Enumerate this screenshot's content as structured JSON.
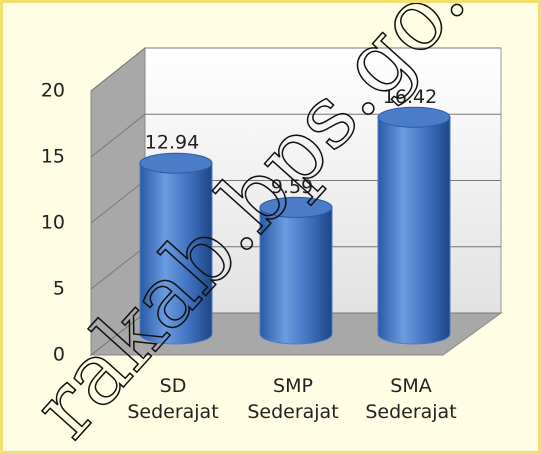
{
  "chart_data": {
    "type": "bar3d",
    "categories": [
      "SD Sederajat",
      "SMP Sederajat",
      "SMA Sederajat"
    ],
    "values": [
      12.94,
      9.59,
      16.42
    ],
    "color": "#4a7cc7",
    "ylim": [
      0,
      20
    ],
    "yticks": [
      0,
      5,
      10,
      15,
      20
    ],
    "grid": true,
    "watermark": "rakab.bps.go.id"
  }
}
